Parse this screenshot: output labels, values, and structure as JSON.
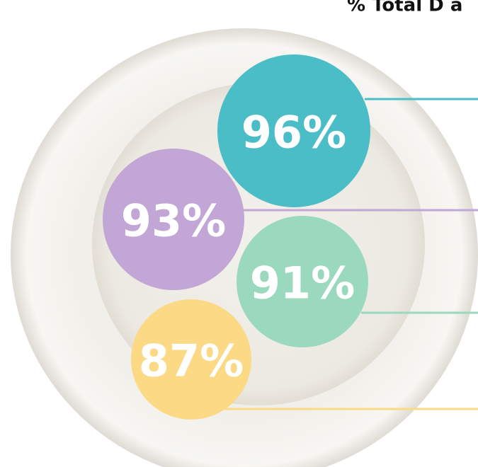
{
  "title": "% Total D a",
  "bubbles": [
    {
      "label": "96%",
      "color": "#4bbdc6"
    },
    {
      "label": "93%",
      "color": "#c1a6d6"
    },
    {
      "label": "91%",
      "color": "#9ad9bd"
    },
    {
      "label": "87%",
      "color": "#fbd985"
    }
  ]
}
